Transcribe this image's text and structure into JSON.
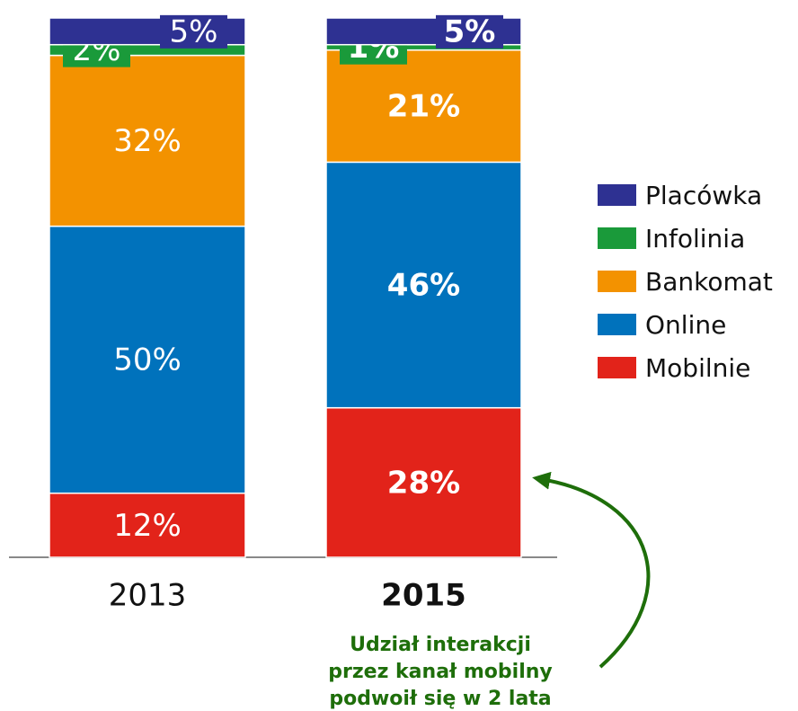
{
  "chart_data": {
    "type": "stacked_bar",
    "categories": [
      "2013",
      "2015"
    ],
    "series": [
      {
        "name": "Mobilnie",
        "color": "#e2231a",
        "values": [
          12,
          28
        ],
        "value_labels": [
          "12%",
          "28%"
        ]
      },
      {
        "name": "Online",
        "color": "#0072bc",
        "values": [
          50,
          46
        ],
        "value_labels": [
          "50%",
          "46%"
        ]
      },
      {
        "name": "Bankomat",
        "color": "#f39200",
        "values": [
          32,
          21
        ],
        "value_labels": [
          "32%",
          "21%"
        ]
      },
      {
        "name": "Infolinia",
        "color": "#1a9a3a",
        "values": [
          2,
          1
        ],
        "value_labels": [
          "2%",
          "1%"
        ]
      },
      {
        "name": "Placówka",
        "color": "#2e3192",
        "values": [
          5,
          5
        ],
        "value_labels": [
          "5%",
          "5%"
        ]
      }
    ],
    "ylim": [
      0,
      101
    ],
    "legend": "right",
    "annotation": [
      "Udział interakcji",
      "przez kanał mobilny",
      "podwoił się w 2 lata"
    ],
    "annotation_color": "#1e6e0a"
  }
}
